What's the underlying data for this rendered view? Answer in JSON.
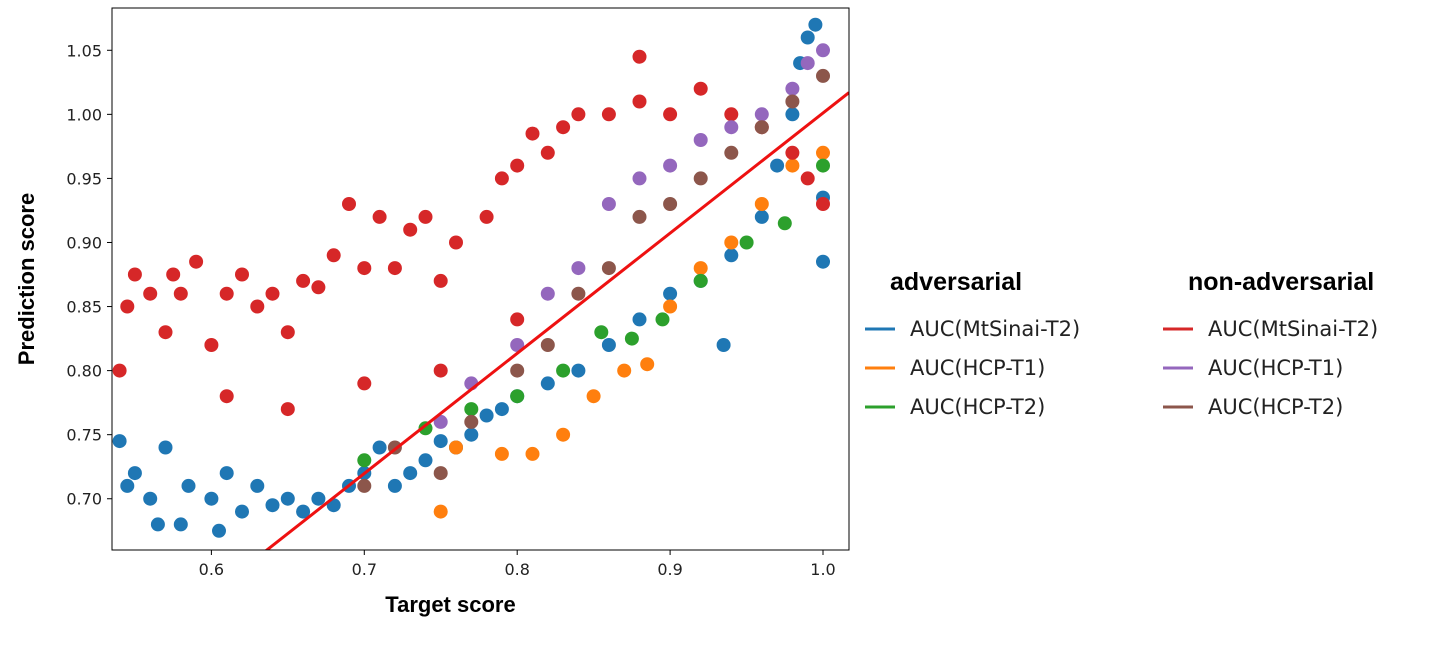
{
  "chart_data": {
    "type": "scatter",
    "xlabel": "Target score",
    "ylabel": "Prediction score",
    "xlim": [
      0.535,
      1.017
    ],
    "ylim": [
      0.66,
      1.083
    ],
    "x_ticks": [
      "0.6",
      "0.7",
      "0.8",
      "0.9",
      "1.0"
    ],
    "y_ticks": [
      "0.70",
      "0.75",
      "0.80",
      "0.85",
      "0.90",
      "0.95",
      "1.00",
      "1.05"
    ],
    "grid": false,
    "legend": {
      "placement": "right",
      "groups": [
        {
          "heading": "adversarial",
          "entries": [
            {
              "label": "AUC(MtSinai-T2)",
              "color": "#1f77b4"
            },
            {
              "label": "AUC(HCP-T1)",
              "color": "#ff7f0e"
            },
            {
              "label": "AUC(HCP-T2)",
              "color": "#2ca02c"
            }
          ]
        },
        {
          "heading": "non-adversarial",
          "entries": [
            {
              "label": "AUC(MtSinai-T2)",
              "color": "#d62728"
            },
            {
              "label": "AUC(HCP-T1)",
              "color": "#9467bd"
            },
            {
              "label": "AUC(HCP-T2)",
              "color": "#8c564b"
            }
          ]
        }
      ]
    },
    "reference_line": {
      "color": "#ee1111",
      "points": [
        [
          0.535,
          0.565
        ],
        [
          1.017,
          1.017
        ]
      ]
    },
    "series": [
      {
        "group": "adversarial",
        "color": "#1f77b4",
        "points": [
          [
            0.54,
            0.745
          ],
          [
            0.545,
            0.71
          ],
          [
            0.55,
            0.72
          ],
          [
            0.56,
            0.7
          ],
          [
            0.565,
            0.68
          ],
          [
            0.57,
            0.74
          ],
          [
            0.58,
            0.68
          ],
          [
            0.585,
            0.71
          ],
          [
            0.6,
            0.7
          ],
          [
            0.605,
            0.675
          ],
          [
            0.61,
            0.72
          ],
          [
            0.62,
            0.69
          ],
          [
            0.63,
            0.71
          ],
          [
            0.64,
            0.695
          ],
          [
            0.65,
            0.7
          ],
          [
            0.66,
            0.69
          ],
          [
            0.67,
            0.7
          ],
          [
            0.68,
            0.695
          ],
          [
            0.69,
            0.71
          ],
          [
            0.7,
            0.72
          ],
          [
            0.71,
            0.74
          ],
          [
            0.72,
            0.71
          ],
          [
            0.73,
            0.72
          ],
          [
            0.74,
            0.73
          ],
          [
            0.75,
            0.745
          ],
          [
            0.76,
            0.74
          ],
          [
            0.77,
            0.75
          ],
          [
            0.78,
            0.765
          ],
          [
            0.79,
            0.77
          ],
          [
            0.8,
            0.78
          ],
          [
            0.82,
            0.79
          ],
          [
            0.84,
            0.8
          ],
          [
            0.86,
            0.82
          ],
          [
            0.88,
            0.84
          ],
          [
            0.9,
            0.86
          ],
          [
            0.92,
            0.87
          ],
          [
            0.935,
            0.82
          ],
          [
            0.94,
            0.89
          ],
          [
            0.96,
            0.92
          ],
          [
            0.97,
            0.96
          ],
          [
            0.98,
            1.0
          ],
          [
            0.985,
            1.04
          ],
          [
            0.99,
            1.06
          ],
          [
            0.995,
            1.07
          ],
          [
            1.0,
            0.935
          ],
          [
            1.0,
            0.885
          ]
        ]
      },
      {
        "group": "adversarial",
        "color": "#ff7f0e",
        "points": [
          [
            0.75,
            0.69
          ],
          [
            0.76,
            0.74
          ],
          [
            0.79,
            0.735
          ],
          [
            0.81,
            0.735
          ],
          [
            0.83,
            0.75
          ],
          [
            0.85,
            0.78
          ],
          [
            0.87,
            0.8
          ],
          [
            0.885,
            0.805
          ],
          [
            0.9,
            0.85
          ],
          [
            0.92,
            0.88
          ],
          [
            0.94,
            0.9
          ],
          [
            0.96,
            0.93
          ],
          [
            0.98,
            0.96
          ],
          [
            1.0,
            0.97
          ]
        ]
      },
      {
        "group": "adversarial",
        "color": "#2ca02c",
        "points": [
          [
            0.7,
            0.73
          ],
          [
            0.74,
            0.755
          ],
          [
            0.77,
            0.77
          ],
          [
            0.8,
            0.78
          ],
          [
            0.83,
            0.8
          ],
          [
            0.855,
            0.83
          ],
          [
            0.875,
            0.825
          ],
          [
            0.895,
            0.84
          ],
          [
            0.92,
            0.87
          ],
          [
            0.95,
            0.9
          ],
          [
            0.975,
            0.915
          ],
          [
            1.0,
            0.96
          ]
        ]
      },
      {
        "group": "non-adversarial",
        "color": "#d62728",
        "points": [
          [
            0.54,
            0.8
          ],
          [
            0.545,
            0.85
          ],
          [
            0.55,
            0.875
          ],
          [
            0.56,
            0.86
          ],
          [
            0.57,
            0.83
          ],
          [
            0.575,
            0.875
          ],
          [
            0.58,
            0.86
          ],
          [
            0.59,
            0.885
          ],
          [
            0.6,
            0.82
          ],
          [
            0.61,
            0.86
          ],
          [
            0.62,
            0.875
          ],
          [
            0.63,
            0.85
          ],
          [
            0.64,
            0.86
          ],
          [
            0.65,
            0.83
          ],
          [
            0.66,
            0.87
          ],
          [
            0.67,
            0.865
          ],
          [
            0.68,
            0.89
          ],
          [
            0.69,
            0.93
          ],
          [
            0.7,
            0.88
          ],
          [
            0.71,
            0.92
          ],
          [
            0.72,
            0.88
          ],
          [
            0.73,
            0.91
          ],
          [
            0.74,
            0.92
          ],
          [
            0.75,
            0.87
          ],
          [
            0.76,
            0.9
          ],
          [
            0.78,
            0.92
          ],
          [
            0.79,
            0.95
          ],
          [
            0.8,
            0.96
          ],
          [
            0.81,
            0.985
          ],
          [
            0.82,
            0.97
          ],
          [
            0.83,
            0.99
          ],
          [
            0.84,
            1.0
          ],
          [
            0.86,
            1.0
          ],
          [
            0.88,
            1.01
          ],
          [
            0.9,
            1.0
          ],
          [
            0.92,
            1.02
          ],
          [
            0.94,
            1.0
          ],
          [
            0.96,
            0.99
          ],
          [
            0.98,
            0.97
          ],
          [
            0.99,
            0.95
          ],
          [
            1.0,
            0.93
          ],
          [
            0.61,
            0.78
          ],
          [
            0.65,
            0.77
          ],
          [
            0.7,
            0.79
          ],
          [
            0.75,
            0.8
          ],
          [
            0.8,
            0.84
          ],
          [
            0.88,
            1.045
          ]
        ]
      },
      {
        "group": "non-adversarial",
        "color": "#9467bd",
        "points": [
          [
            0.75,
            0.76
          ],
          [
            0.77,
            0.79
          ],
          [
            0.8,
            0.82
          ],
          [
            0.82,
            0.86
          ],
          [
            0.84,
            0.88
          ],
          [
            0.86,
            0.93
          ],
          [
            0.88,
            0.95
          ],
          [
            0.9,
            0.96
          ],
          [
            0.92,
            0.98
          ],
          [
            0.94,
            0.99
          ],
          [
            0.96,
            1.0
          ],
          [
            0.98,
            1.02
          ],
          [
            0.99,
            1.04
          ],
          [
            1.0,
            1.05
          ]
        ]
      },
      {
        "group": "non-adversarial",
        "color": "#8c564b",
        "points": [
          [
            0.7,
            0.71
          ],
          [
            0.72,
            0.74
          ],
          [
            0.75,
            0.72
          ],
          [
            0.77,
            0.76
          ],
          [
            0.8,
            0.8
          ],
          [
            0.82,
            0.82
          ],
          [
            0.84,
            0.86
          ],
          [
            0.86,
            0.88
          ],
          [
            0.88,
            0.92
          ],
          [
            0.9,
            0.93
          ],
          [
            0.92,
            0.95
          ],
          [
            0.94,
            0.97
          ],
          [
            0.96,
            0.99
          ],
          [
            0.98,
            1.01
          ],
          [
            1.0,
            1.03
          ]
        ]
      }
    ]
  }
}
